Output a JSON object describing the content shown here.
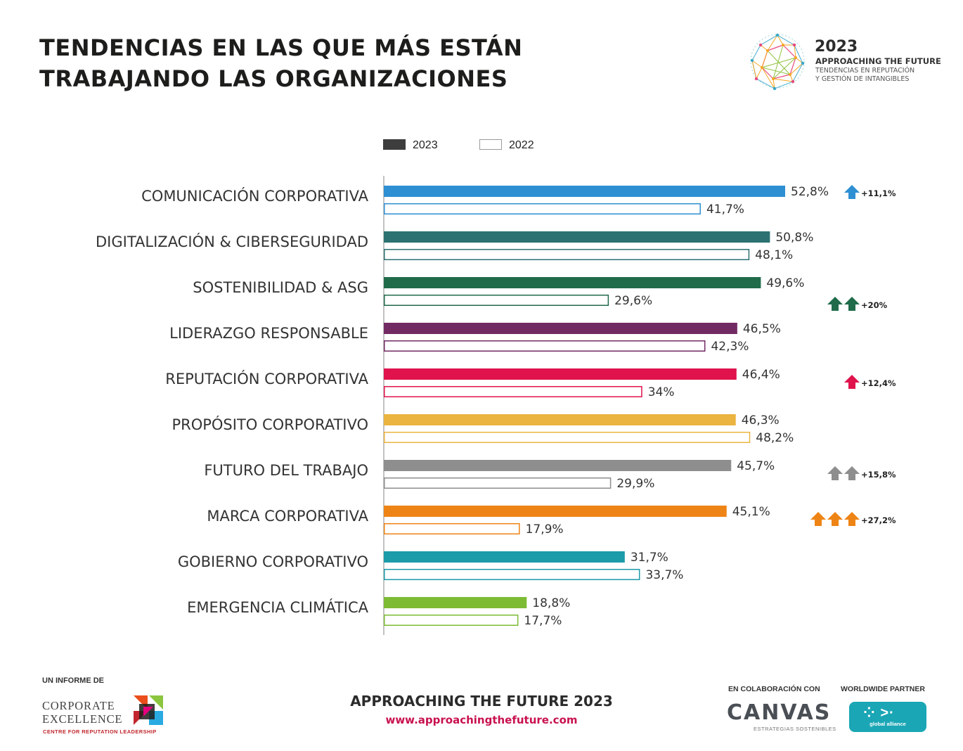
{
  "header": {
    "title_line1": "TENDENCIAS EN LAS QUE MÁS ESTÁN",
    "title_line2": "TRABAJANDO LAS ORGANIZACIONES"
  },
  "brand": {
    "year": "2023",
    "name": "APPROACHING THE FUTURE",
    "subtitle_line1": "TENDENCIAS EN REPUTACIÓN",
    "subtitle_line2": "Y GESTIÓN DE INTANGIBLES"
  },
  "legend": {
    "series_2023": "2023",
    "series_2022": "2022"
  },
  "chart_data": {
    "type": "bar",
    "orientation": "horizontal",
    "title": "TENDENCIAS EN LAS QUE MÁS ESTÁN TRABAJANDO LAS ORGANIZACIONES",
    "xlabel": "",
    "ylabel": "",
    "xlim": [
      0,
      55
    ],
    "grid": false,
    "legend_position": "top",
    "categories": [
      "COMUNICACIÓN CORPORATIVA",
      "DIGITALIZACIÓN & CIBERSEGURIDAD",
      "SOSTENIBILIDAD & ASG",
      "LIDERAZGO RESPONSABLE",
      "REPUTACIÓN CORPORATIVA",
      "PROPÓSITO CORPORATIVO",
      "FUTURO DEL TRABAJO",
      "MARCA CORPORATIVA",
      "GOBIERNO CORPORATIVO",
      "EMERGENCIA CLIMÁTICA"
    ],
    "series": [
      {
        "name": "2023",
        "values": [
          52.8,
          50.8,
          49.6,
          46.5,
          46.4,
          46.3,
          45.7,
          45.1,
          31.7,
          18.8
        ],
        "labels": [
          "52,8%",
          "50,8%",
          "49,6%",
          "46,5%",
          "46,4%",
          "46,3%",
          "45,7%",
          "45,1%",
          "31,7%",
          "18,8%"
        ]
      },
      {
        "name": "2022",
        "values": [
          41.7,
          48.1,
          29.6,
          42.3,
          34.0,
          48.2,
          29.9,
          17.9,
          33.7,
          17.7
        ],
        "labels": [
          "41,7%",
          "48,1%",
          "29,6%",
          "42,3%",
          "34%",
          "48,2%",
          "29,9%",
          "17,9%",
          "33,7%",
          "17,7%"
        ]
      }
    ],
    "colors": [
      "#2e8fd3",
      "#2d7172",
      "#206c4a",
      "#722a63",
      "#e0134c",
      "#ebb440",
      "#8e8e8e",
      "#ee8415",
      "#1c9ba9",
      "#7dbb35"
    ],
    "annotations": [
      {
        "category_index": 0,
        "arrows": 1,
        "text": "+11,1%",
        "color": "#2e8fd3",
        "align": "top"
      },
      {
        "category_index": 2,
        "arrows": 2,
        "text": "+20%",
        "color": "#206c4a",
        "align": "bottom"
      },
      {
        "category_index": 4,
        "arrows": 1,
        "text": "+12,4%",
        "color": "#e0134c",
        "align": "mid"
      },
      {
        "category_index": 6,
        "arrows": 2,
        "text": "+15,8%",
        "color": "#8e8e8e",
        "align": "mid"
      },
      {
        "category_index": 7,
        "arrows": 3,
        "text": "+27,2%",
        "color": "#ee8415",
        "align": "mid"
      }
    ]
  },
  "footer": {
    "report_by": "UN INFORME DE",
    "org_line1": "CORPORATE",
    "org_line2": "EXCELLENCE",
    "org_line3": "CENTRE FOR REPUTATION LEADERSHIP",
    "report_name": "APPROACHING THE FUTURE 2023",
    "url": "www.approachingthefuture.com",
    "collab_label": "EN COLABORACIÓN CON",
    "collab_name": "CANVAS",
    "collab_sub": "ESTRATEGIAS SOSTENIBLES",
    "partner_label": "WORLDWIDE PARTNER",
    "partner_name": "global alliance"
  }
}
